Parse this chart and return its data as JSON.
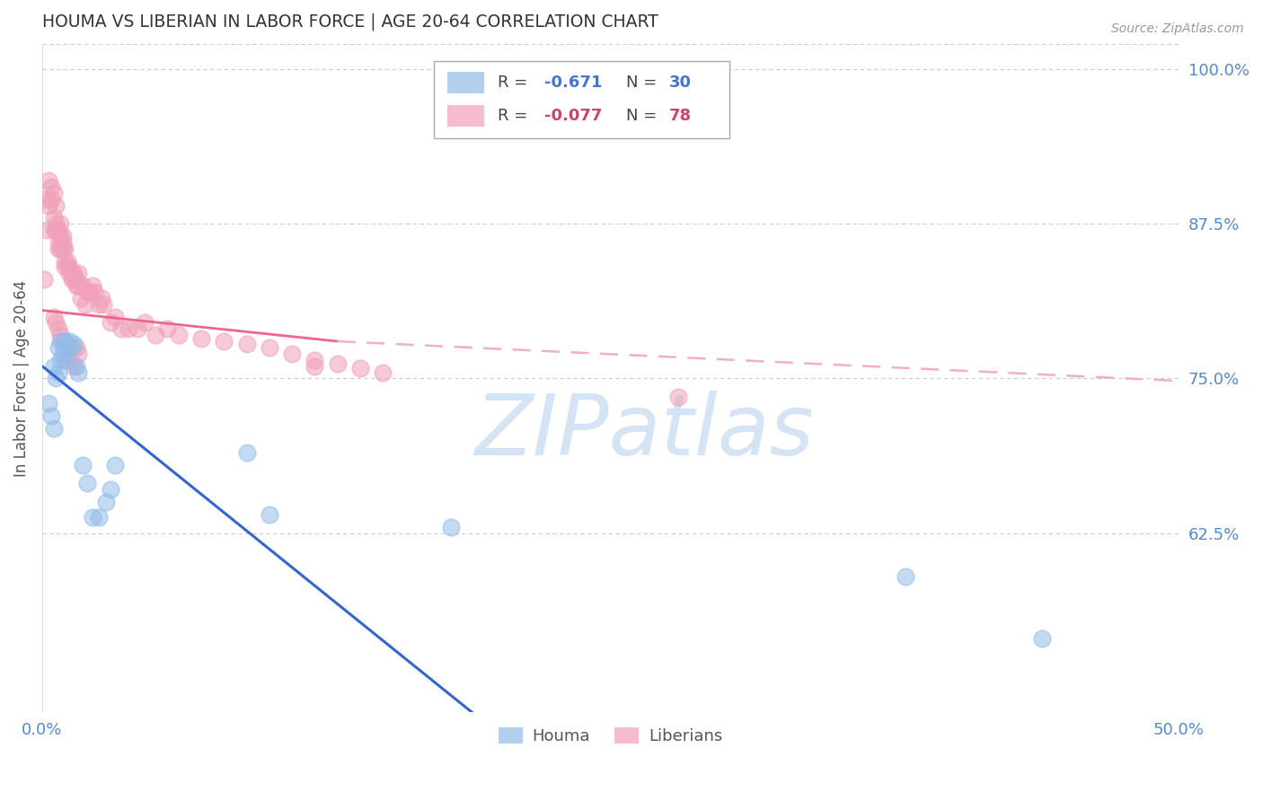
{
  "title": "HOUMA VS LIBERIAN IN LABOR FORCE | AGE 20-64 CORRELATION CHART",
  "source": "Source: ZipAtlas.com",
  "ylabel": "In Labor Force | Age 20-64",
  "xlim": [
    0.0,
    0.5
  ],
  "ylim": [
    0.48,
    1.02
  ],
  "yticks": [
    0.625,
    0.75,
    0.875,
    1.0
  ],
  "ytick_labels": [
    "62.5%",
    "75.0%",
    "87.5%",
    "100.0%"
  ],
  "xticks": [
    0.0,
    0.05,
    0.1,
    0.15,
    0.2,
    0.25,
    0.3,
    0.35,
    0.4,
    0.45,
    0.5
  ],
  "xtick_labels": [
    "0.0%",
    "",
    "",
    "",
    "",
    "",
    "",
    "",
    "",
    "",
    "50.0%"
  ],
  "houma_color": "#92bce8",
  "liberian_color": "#f0a0b8",
  "houma_R": -0.671,
  "houma_N": 30,
  "liberian_R": -0.077,
  "liberian_N": 78,
  "houma_scatter_x": [
    0.003,
    0.004,
    0.005,
    0.005,
    0.006,
    0.007,
    0.007,
    0.008,
    0.008,
    0.009,
    0.01,
    0.01,
    0.011,
    0.012,
    0.013,
    0.014,
    0.015,
    0.016,
    0.018,
    0.02,
    0.022,
    0.025,
    0.028,
    0.03,
    0.032,
    0.09,
    0.1,
    0.18,
    0.38,
    0.44
  ],
  "houma_scatter_y": [
    0.73,
    0.72,
    0.71,
    0.76,
    0.75,
    0.755,
    0.775,
    0.765,
    0.78,
    0.77,
    0.765,
    0.78,
    0.775,
    0.78,
    0.775,
    0.778,
    0.76,
    0.755,
    0.68,
    0.665,
    0.638,
    0.638,
    0.65,
    0.66,
    0.68,
    0.69,
    0.64,
    0.63,
    0.59,
    0.54
  ],
  "liberian_scatter_x": [
    0.001,
    0.002,
    0.002,
    0.003,
    0.003,
    0.004,
    0.004,
    0.005,
    0.005,
    0.005,
    0.006,
    0.006,
    0.006,
    0.007,
    0.007,
    0.007,
    0.008,
    0.008,
    0.008,
    0.009,
    0.009,
    0.009,
    0.01,
    0.01,
    0.01,
    0.011,
    0.011,
    0.012,
    0.012,
    0.013,
    0.013,
    0.014,
    0.014,
    0.015,
    0.015,
    0.016,
    0.016,
    0.017,
    0.018,
    0.019,
    0.02,
    0.021,
    0.022,
    0.023,
    0.025,
    0.026,
    0.027,
    0.03,
    0.032,
    0.035,
    0.038,
    0.042,
    0.045,
    0.05,
    0.055,
    0.06,
    0.07,
    0.08,
    0.09,
    0.1,
    0.11,
    0.12,
    0.13,
    0.14,
    0.15,
    0.005,
    0.006,
    0.007,
    0.008,
    0.009,
    0.01,
    0.011,
    0.012,
    0.014,
    0.015,
    0.016,
    0.12,
    0.28
  ],
  "liberian_scatter_y": [
    0.83,
    0.87,
    0.895,
    0.89,
    0.91,
    0.895,
    0.905,
    0.87,
    0.88,
    0.9,
    0.875,
    0.89,
    0.87,
    0.86,
    0.87,
    0.855,
    0.855,
    0.865,
    0.875,
    0.855,
    0.86,
    0.865,
    0.845,
    0.855,
    0.84,
    0.84,
    0.845,
    0.835,
    0.84,
    0.83,
    0.835,
    0.83,
    0.835,
    0.825,
    0.83,
    0.825,
    0.835,
    0.815,
    0.825,
    0.81,
    0.82,
    0.82,
    0.825,
    0.82,
    0.81,
    0.815,
    0.81,
    0.795,
    0.8,
    0.79,
    0.79,
    0.79,
    0.795,
    0.785,
    0.79,
    0.785,
    0.782,
    0.78,
    0.778,
    0.775,
    0.77,
    0.765,
    0.762,
    0.758,
    0.755,
    0.8,
    0.795,
    0.79,
    0.785,
    0.78,
    0.775,
    0.77,
    0.765,
    0.76,
    0.775,
    0.77,
    0.76,
    0.735
  ],
  "background_color": "#ffffff",
  "grid_color": "#cccccc",
  "title_color": "#333333",
  "axis_label_color": "#555555",
  "tick_label_color": "#5588cc",
  "legend_R_color_houma": "#4477cc",
  "legend_R_color_liberian": "#cc4466",
  "houma_line_color": "#3366cc",
  "liberian_line_solid_color": "#ee6688",
  "liberian_line_dash_color": "#f0b0c0",
  "watermark_text": "ZIPatlas",
  "watermark_color": "#d5e4f5"
}
